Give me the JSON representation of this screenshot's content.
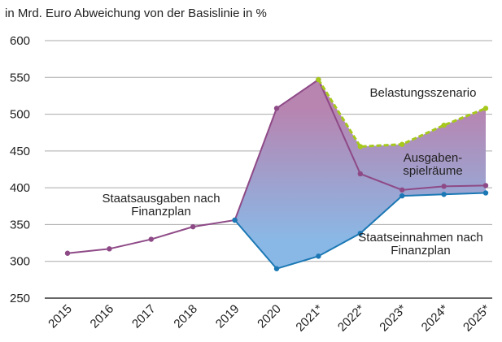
{
  "chart_data": {
    "type": "line",
    "title": "in Mrd. Euro Abweichung von der Basislinie in %",
    "categories": [
      "2015",
      "2016",
      "2017",
      "2018",
      "2019",
      "2020",
      "2021*",
      "2022*",
      "2023*",
      "2024*",
      "2025*"
    ],
    "series": [
      {
        "name": "Staatsausgaben nach Finanzplan",
        "color": "#8e4a87",
        "values": [
          311,
          317,
          330,
          347,
          356,
          508,
          547,
          419,
          397,
          402,
          403
        ]
      },
      {
        "name": "Staatseinnahmen nach Finanzplan",
        "color": "#1b78b4",
        "values": [
          null,
          null,
          null,
          null,
          356,
          290,
          307,
          338,
          389,
          391,
          393
        ]
      },
      {
        "name": "Belastungsszenario",
        "color": "#a6c81c",
        "dashed": true,
        "values": [
          null,
          null,
          null,
          null,
          null,
          null,
          547,
          456,
          459,
          485,
          508
        ]
      }
    ],
    "annotations": [
      "Ausgaben-spielräume"
    ],
    "ylim": [
      250,
      600
    ],
    "yticks": [
      250,
      300,
      350,
      400,
      450,
      500,
      550,
      600
    ],
    "grid": true
  }
}
